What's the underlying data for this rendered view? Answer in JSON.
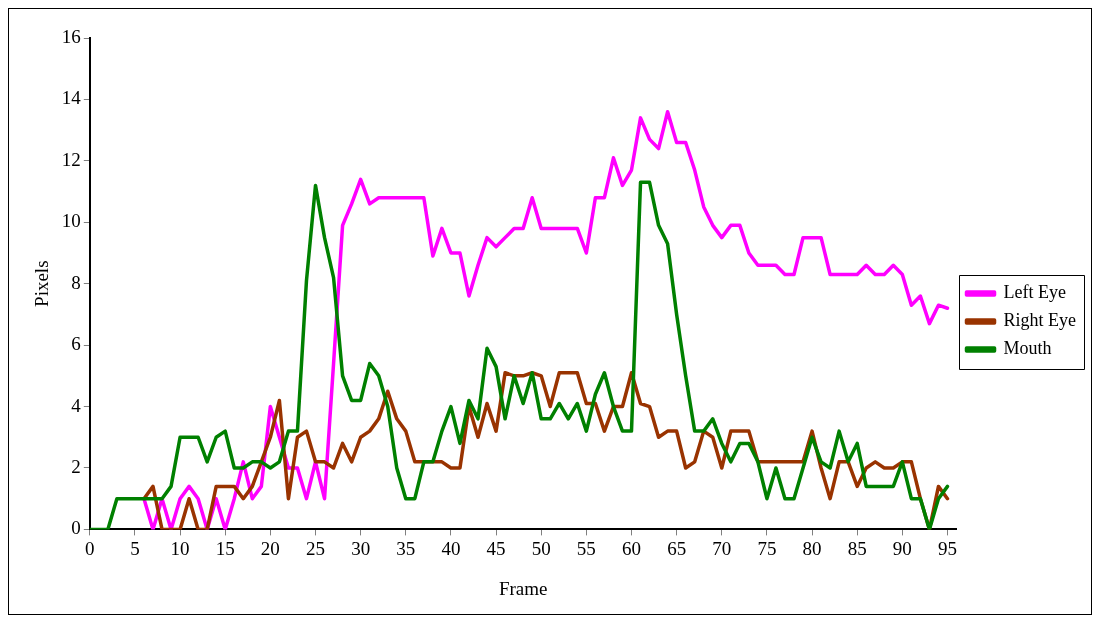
{
  "chart_data": {
    "type": "line",
    "xlabel": "Frame",
    "ylabel": "Pixels",
    "x": [
      0,
      1,
      2,
      3,
      4,
      5,
      6,
      7,
      8,
      9,
      10,
      11,
      12,
      13,
      14,
      15,
      16,
      17,
      18,
      19,
      20,
      21,
      22,
      23,
      24,
      25,
      26,
      27,
      28,
      29,
      30,
      31,
      32,
      33,
      34,
      35,
      36,
      37,
      38,
      39,
      40,
      41,
      42,
      43,
      44,
      45,
      46,
      47,
      48,
      49,
      50,
      51,
      52,
      53,
      54,
      55,
      56,
      57,
      58,
      59,
      60,
      61,
      62,
      63,
      64,
      65,
      66,
      67,
      68,
      69,
      70,
      71,
      72,
      73,
      74,
      75,
      76,
      77,
      78,
      79,
      80,
      81,
      82,
      83,
      84,
      85,
      86,
      87,
      88,
      89,
      90,
      91,
      92,
      93,
      94,
      95
    ],
    "series": [
      {
        "name": "Left Eye",
        "color": "#ff00ff",
        "values": [
          null,
          null,
          null,
          null,
          null,
          null,
          1,
          0,
          1,
          0,
          1,
          1.4,
          1,
          0,
          1,
          0,
          1,
          2.2,
          1,
          1.4,
          4,
          3,
          2,
          2,
          1,
          2.2,
          1,
          5.4,
          9.9,
          10.6,
          11.4,
          10.6,
          10.8,
          10.8,
          10.8,
          10.8,
          10.8,
          10.8,
          8.9,
          9.8,
          9,
          9,
          7.6,
          8.6,
          9.5,
          9.2,
          9.5,
          9.8,
          9.8,
          10.8,
          9.8,
          9.8,
          9.8,
          9.8,
          9.8,
          9,
          10.8,
          10.8,
          12.1,
          11.2,
          11.7,
          13.4,
          12.7,
          12.4,
          13.6,
          12.6,
          12.6,
          11.7,
          10.5,
          9.9,
          9.5,
          9.9,
          9.9,
          9,
          8.6,
          8.6,
          8.6,
          8.3,
          8.3,
          9.5,
          9.5,
          9.5,
          8.3,
          8.3,
          8.3,
          8.3,
          8.6,
          8.3,
          8.3,
          8.6,
          8.3,
          7.3,
          7.6,
          6.7,
          7.3,
          7.2
        ]
      },
      {
        "name": "Right Eye",
        "color": "#993300",
        "values": [
          null,
          null,
          null,
          null,
          null,
          null,
          1,
          1.4,
          0,
          0,
          0,
          1,
          0,
          0,
          1.4,
          1.4,
          1.4,
          1,
          1.4,
          2.2,
          3,
          4.2,
          1,
          3,
          3.2,
          2.2,
          2.2,
          2,
          2.8,
          2.2,
          3,
          3.2,
          3.6,
          4.5,
          3.6,
          3.2,
          2.2,
          2.2,
          2.2,
          2.2,
          2,
          2,
          4,
          3,
          4.1,
          3.2,
          5.1,
          5,
          5,
          5.1,
          5,
          4,
          5.1,
          5.1,
          5.1,
          4.1,
          4.1,
          3.2,
          4,
          4,
          5.1,
          4.1,
          4,
          3,
          3.2,
          3.2,
          2,
          2.2,
          3.2,
          3,
          2,
          3.2,
          3.2,
          3.2,
          2.2,
          2.2,
          2.2,
          2.2,
          2.2,
          2.2,
          3.2,
          2,
          1,
          2.2,
          2.2,
          1.4,
          2,
          2.2,
          2,
          2,
          2.2,
          2.2,
          1,
          0,
          1.4,
          1
        ]
      },
      {
        "name": "Mouth",
        "color": "#008000",
        "values": [
          0,
          0,
          0,
          1,
          1,
          1,
          1,
          1,
          1,
          1.4,
          3,
          3,
          3,
          2.2,
          3,
          3.2,
          2,
          2,
          2.2,
          2.2,
          2,
          2.2,
          3.2,
          3.2,
          8.1,
          11.2,
          9.5,
          8.2,
          5,
          4.2,
          4.2,
          5.4,
          5,
          4,
          2,
          1,
          1,
          2.2,
          2.2,
          3.2,
          4,
          2.8,
          4.2,
          3.6,
          5.9,
          5.3,
          3.6,
          5,
          4.1,
          5.1,
          3.6,
          3.6,
          4.1,
          3.6,
          4.1,
          3.2,
          4.4,
          5.1,
          4,
          3.2,
          3.2,
          11.3,
          11.3,
          9.9,
          9.3,
          7,
          5,
          3.2,
          3.2,
          3.6,
          2.8,
          2.2,
          2.8,
          2.8,
          2.2,
          1,
          2,
          1,
          1,
          2,
          3,
          2.2,
          2,
          3.2,
          2.2,
          2.8,
          1.4,
          1.4,
          1.4,
          1.4,
          2.2,
          1,
          1,
          0,
          1,
          1.4
        ]
      }
    ],
    "xlim": [
      0,
      96
    ],
    "xticks": [
      0,
      5,
      10,
      15,
      20,
      25,
      30,
      35,
      40,
      45,
      50,
      55,
      60,
      65,
      70,
      75,
      80,
      85,
      90,
      95
    ],
    "ylim": [
      0,
      16
    ],
    "yticks": [
      0,
      2,
      4,
      6,
      8,
      10,
      12,
      14,
      16
    ],
    "grid": false,
    "legend": "right",
    "marker": "none",
    "line_style": "solid"
  }
}
